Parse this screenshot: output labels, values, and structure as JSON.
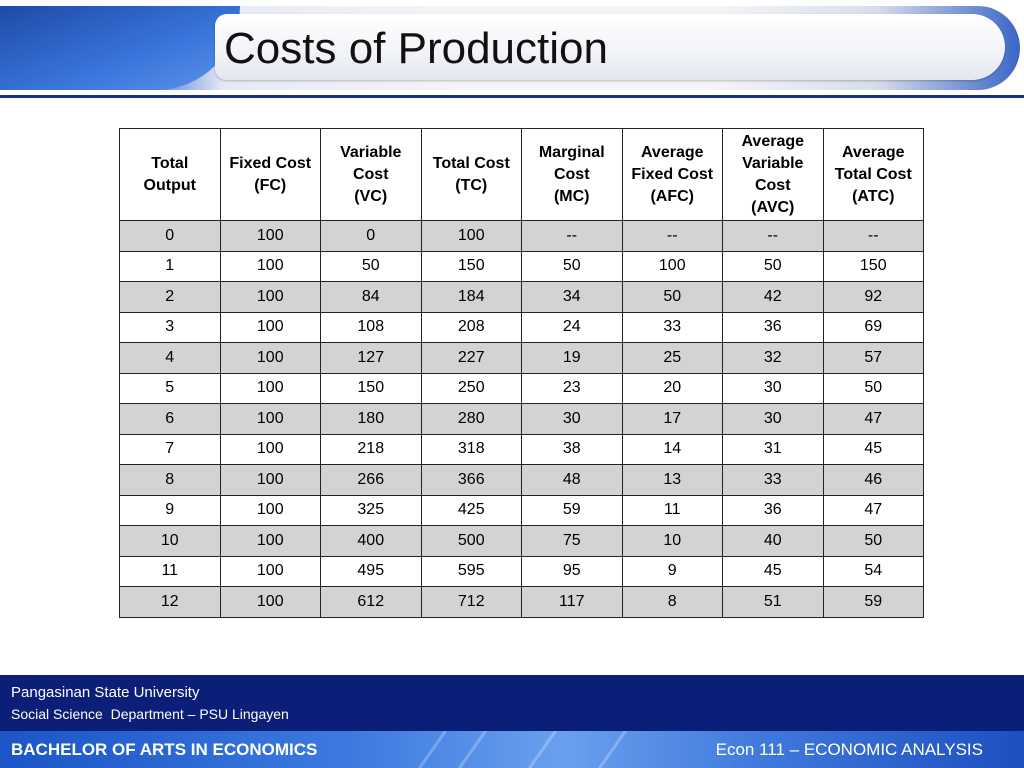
{
  "slide": {
    "title": "Costs of Production"
  },
  "table": {
    "headers": [
      [
        "Total",
        "Output"
      ],
      [
        "Fixed Cost",
        "(FC)"
      ],
      [
        "Variable",
        "Cost",
        "(VC)"
      ],
      [
        "Total Cost",
        "(TC)"
      ],
      [
        "Marginal",
        "Cost",
        "(MC)"
      ],
      [
        "Average",
        "Fixed Cost",
        "(AFC)"
      ],
      [
        "Average",
        "Variable",
        "Cost",
        "(AVC)"
      ],
      [
        "Average",
        "Total Cost",
        "(ATC)"
      ]
    ],
    "rows": [
      [
        "0",
        "100",
        "0",
        "100",
        "--",
        "--",
        "--",
        "--"
      ],
      [
        "1",
        "100",
        "50",
        "150",
        "50",
        "100",
        "50",
        "150"
      ],
      [
        "2",
        "100",
        "84",
        "184",
        "34",
        "50",
        "42",
        "92"
      ],
      [
        "3",
        "100",
        "108",
        "208",
        "24",
        "33",
        "36",
        "69"
      ],
      [
        "4",
        "100",
        "127",
        "227",
        "19",
        "25",
        "32",
        "57"
      ],
      [
        "5",
        "100",
        "150",
        "250",
        "23",
        "20",
        "30",
        "50"
      ],
      [
        "6",
        "100",
        "180",
        "280",
        "30",
        "17",
        "30",
        "47"
      ],
      [
        "7",
        "100",
        "218",
        "318",
        "38",
        "14",
        "31",
        "45"
      ],
      [
        "8",
        "100",
        "266",
        "366",
        "48",
        "13",
        "33",
        "46"
      ],
      [
        "9",
        "100",
        "325",
        "425",
        "59",
        "11",
        "36",
        "47"
      ],
      [
        "10",
        "100",
        "400",
        "500",
        "75",
        "10",
        "40",
        "50"
      ],
      [
        "11",
        "100",
        "495",
        "595",
        "95",
        "9",
        "45",
        "54"
      ],
      [
        "12",
        "100",
        "612",
        "712",
        "117",
        "8",
        "51",
        "59"
      ]
    ]
  },
  "footer": {
    "university": "Pangasinan State University",
    "department": "Social Science  Department – PSU Lingayen",
    "program": "BACHELOR OF ARTS IN ECONOMICS",
    "course": "Econ 111 – ECONOMIC ANALYSIS"
  },
  "colors": {
    "header_rule": "#15318a",
    "footer_dark": "#0c1f78",
    "footer_bar": "#3d7be0",
    "row_shade": "#d3d3d3"
  }
}
